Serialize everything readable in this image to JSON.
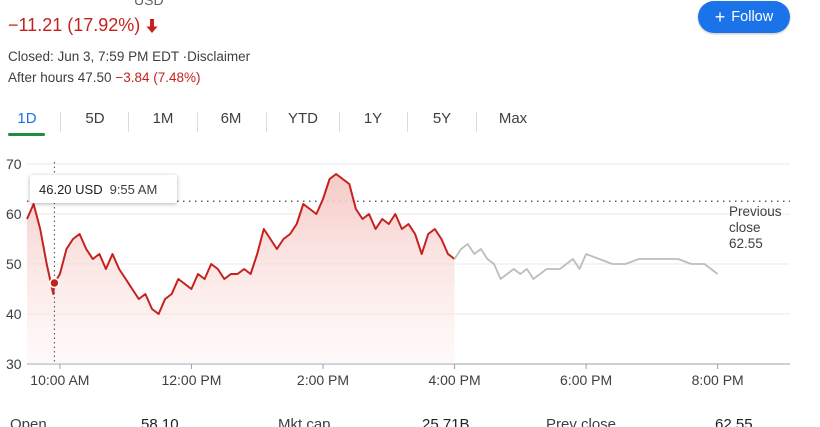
{
  "quote": {
    "price_partial": "",
    "currency": "USD",
    "change_text": "−11.21 (17.92%)",
    "closed_text": "Closed: Jun 3, 7:59 PM EDT ·Disclaimer",
    "after_hours_label": "After hours 47.50",
    "after_hours_change": "−3.84 (7.48%)"
  },
  "follow_button": {
    "label": "Follow"
  },
  "tabs": [
    "1D",
    "5D",
    "1M",
    "6M",
    "YTD",
    "1Y",
    "5Y",
    "Max"
  ],
  "active_tab": "1D",
  "tooltip": {
    "price": "46.20 USD",
    "time": "9:55 AM"
  },
  "previous_close": {
    "label_line1": "Previous",
    "label_line2": "close",
    "value": "62.55"
  },
  "stats": {
    "open_label": "Open",
    "open_value": "58.10",
    "mktcap_label": "Mkt cap",
    "mktcap_value": "25.71B",
    "prevclose_label": "Prev close",
    "prevclose_value": "62.55"
  },
  "colors": {
    "regular_line": "#c5221f",
    "regular_fill": "#f4c7c3",
    "after_hours_line": "#bdbdbd",
    "accent": "#1a73e8",
    "active_underline": "#1e8e3e"
  },
  "chart_data": {
    "type": "line",
    "title": "",
    "xlabel": "",
    "ylabel": "",
    "ylim": [
      30,
      70
    ],
    "yticks": [
      30,
      40,
      50,
      60,
      70
    ],
    "xticks": [
      "10:00 AM",
      "12:00 PM",
      "2:00 PM",
      "4:00 PM",
      "6:00 PM",
      "8:00 PM"
    ],
    "xtick_values": [
      10,
      12,
      14,
      16,
      18,
      20
    ],
    "x_range": [
      9.5,
      21.1
    ],
    "previous_close": 62.55,
    "grid": "horizontal",
    "highlight_point": {
      "x": 9.917,
      "y": 46.2
    },
    "series": [
      {
        "session": "regular",
        "x": [
          9.5,
          9.6,
          9.7,
          9.8,
          9.9,
          9.917,
          10.0,
          10.1,
          10.2,
          10.3,
          10.4,
          10.5,
          10.6,
          10.7,
          10.8,
          10.9,
          11.0,
          11.1,
          11.2,
          11.3,
          11.4,
          11.5,
          11.6,
          11.7,
          11.8,
          11.9,
          12.0,
          12.1,
          12.2,
          12.3,
          12.4,
          12.5,
          12.6,
          12.7,
          12.8,
          12.9,
          13.0,
          13.1,
          13.2,
          13.3,
          13.4,
          13.5,
          13.6,
          13.7,
          13.8,
          13.9,
          14.0,
          14.1,
          14.2,
          14.3,
          14.4,
          14.5,
          14.6,
          14.7,
          14.8,
          14.9,
          15.0,
          15.1,
          15.2,
          15.3,
          15.4,
          15.5,
          15.6,
          15.7,
          15.8,
          15.9,
          16.0
        ],
        "y": [
          59,
          62,
          57,
          50,
          44,
          46.2,
          48,
          53,
          55,
          56,
          53,
          51,
          52,
          49,
          52,
          49,
          47,
          45,
          43,
          44,
          41,
          40,
          43,
          44,
          47,
          46,
          45,
          48,
          47,
          50,
          49,
          47,
          48,
          48,
          49,
          48,
          52,
          57,
          55,
          53,
          55,
          56,
          58,
          62,
          61,
          60,
          63,
          67,
          68,
          67,
          66,
          61,
          59,
          60,
          57,
          59,
          58,
          60,
          57,
          58,
          56,
          52,
          56,
          57,
          55,
          52,
          51
        ]
      },
      {
        "session": "after_hours",
        "x": [
          16.0,
          16.1,
          16.2,
          16.3,
          16.4,
          16.5,
          16.6,
          16.7,
          16.8,
          16.9,
          17.0,
          17.1,
          17.2,
          17.3,
          17.4,
          17.5,
          17.6,
          17.7,
          17.8,
          17.9,
          18.0,
          18.2,
          18.4,
          18.6,
          18.8,
          19.0,
          19.2,
          19.4,
          19.6,
          19.8,
          20.0
        ],
        "y": [
          51,
          53,
          54,
          52,
          53,
          51,
          50,
          47,
          48,
          49,
          48,
          49,
          47,
          48,
          49,
          49,
          49,
          50,
          51,
          49,
          52,
          51,
          50,
          50,
          51,
          51,
          51,
          51,
          50,
          50,
          48
        ]
      }
    ]
  }
}
